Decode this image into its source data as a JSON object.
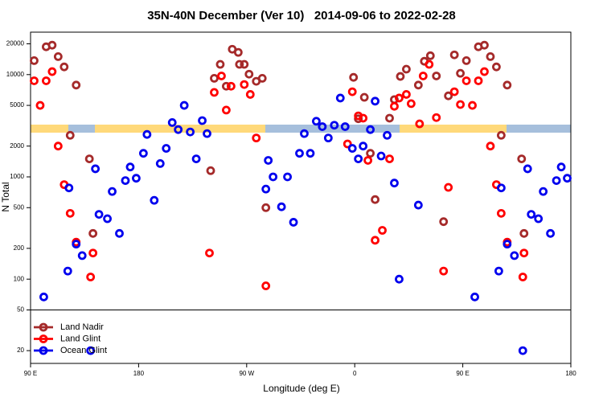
{
  "chart_data": {
    "type": "scatter",
    "title": "35N-40N December (Ver 10)   2014-09-06 to 2022-02-28",
    "x_label": "Longitude (deg E)",
    "y_label": "N Total",
    "xlim": [
      90,
      540
    ],
    "xticks": [
      {
        "value": 90,
        "label": "90 E"
      },
      180,
      {
        "value": 270,
        "label": "90 W"
      },
      {
        "value": 360,
        "label": "0"
      },
      {
        "value": 450,
        "label": "90 E"
      },
      {
        "value": 540,
        "label": "180"
      }
    ],
    "ylim": [
      15,
      26000
    ],
    "yticks": [
      20,
      50,
      100,
      200,
      500,
      1000,
      2000,
      5000,
      10000,
      20000
    ],
    "log_y": true,
    "legend": "lower left",
    "series": [
      {
        "name": "Land Nadir",
        "color": "#a52a2a",
        "x": [
          93,
          103,
          108,
          113,
          118,
          123,
          128,
          139,
          142,
          240,
          243,
          248,
          253,
          258,
          263,
          264,
          268,
          272,
          278,
          283,
          286,
          359,
          363,
          368,
          373,
          377,
          389,
          393,
          398,
          403,
          413,
          418,
          423,
          428,
          434,
          438,
          443,
          448,
          453,
          463,
          468,
          473,
          478,
          482,
          487,
          499,
          501
        ],
        "values": [
          13700,
          18700,
          19400,
          15000,
          11900,
          2550,
          7900,
          1500,
          280,
          1150,
          9200,
          12600,
          7700,
          17700,
          16500,
          12600,
          12600,
          10100,
          8600,
          9200,
          500,
          9400,
          3700,
          6000,
          1700,
          600,
          3750,
          5700,
          9600,
          11300,
          7900,
          13500,
          15300,
          9700,
          365,
          6200,
          15600,
          10300,
          13700,
          18700,
          19400,
          15000,
          11900,
          2550,
          7900,
          1500,
          280
        ]
      },
      {
        "name": "Land Glint",
        "color": "#ff0000",
        "x": [
          93,
          98,
          103,
          108,
          113,
          118,
          123,
          128,
          140,
          142,
          239,
          243,
          249,
          253,
          257,
          268,
          273,
          278,
          286,
          354,
          358,
          363,
          367,
          371,
          377,
          383,
          389,
          393,
          397,
          403,
          407,
          414,
          417,
          422,
          428,
          434,
          438,
          443,
          448,
          453,
          458,
          463,
          468,
          473,
          478,
          482,
          487,
          500,
          501
        ],
        "values": [
          8700,
          5000,
          8700,
          10700,
          2000,
          840,
          440,
          230,
          105,
          180,
          180,
          6700,
          9700,
          4500,
          7700,
          8000,
          6400,
          2400,
          86,
          2100,
          6800,
          3950,
          3750,
          1450,
          240,
          300,
          1500,
          4900,
          5900,
          6400,
          5200,
          3300,
          9700,
          12600,
          3800,
          120,
          790,
          6800,
          5100,
          8700,
          5000,
          8700,
          10700,
          2000,
          840,
          440,
          230,
          105,
          180
        ]
      },
      {
        "name": "Ocean Glint",
        "color": "#0000ee",
        "x": [
          101,
          121,
          122,
          128,
          133,
          140,
          144,
          147,
          154,
          158,
          164,
          169,
          173,
          178,
          184,
          187,
          193,
          198,
          203,
          208,
          213,
          218,
          223,
          228,
          233,
          237,
          286,
          288,
          292,
          299,
          304,
          309,
          314,
          318,
          323,
          328,
          333,
          338,
          343,
          348,
          352,
          358,
          363,
          367,
          373,
          377,
          382,
          387,
          393,
          397,
          413,
          460,
          480,
          482,
          487,
          493,
          500,
          504,
          507,
          513,
          517,
          523,
          528,
          532,
          537
        ],
        "values": [
          67,
          120,
          780,
          220,
          170,
          20,
          1200,
          430,
          390,
          720,
          280,
          920,
          1250,
          970,
          1700,
          2600,
          590,
          1350,
          1900,
          3400,
          2900,
          5000,
          2750,
          1500,
          3550,
          2650,
          760,
          1450,
          1000,
          510,
          1000,
          360,
          1700,
          2650,
          1700,
          3500,
          3100,
          2400,
          3200,
          5900,
          3100,
          1900,
          1500,
          2000,
          2900,
          5500,
          1600,
          2550,
          870,
          100,
          530,
          67,
          120,
          780,
          220,
          170,
          20,
          1200,
          430,
          390,
          720,
          280,
          920,
          1250,
          970
        ]
      }
    ]
  }
}
